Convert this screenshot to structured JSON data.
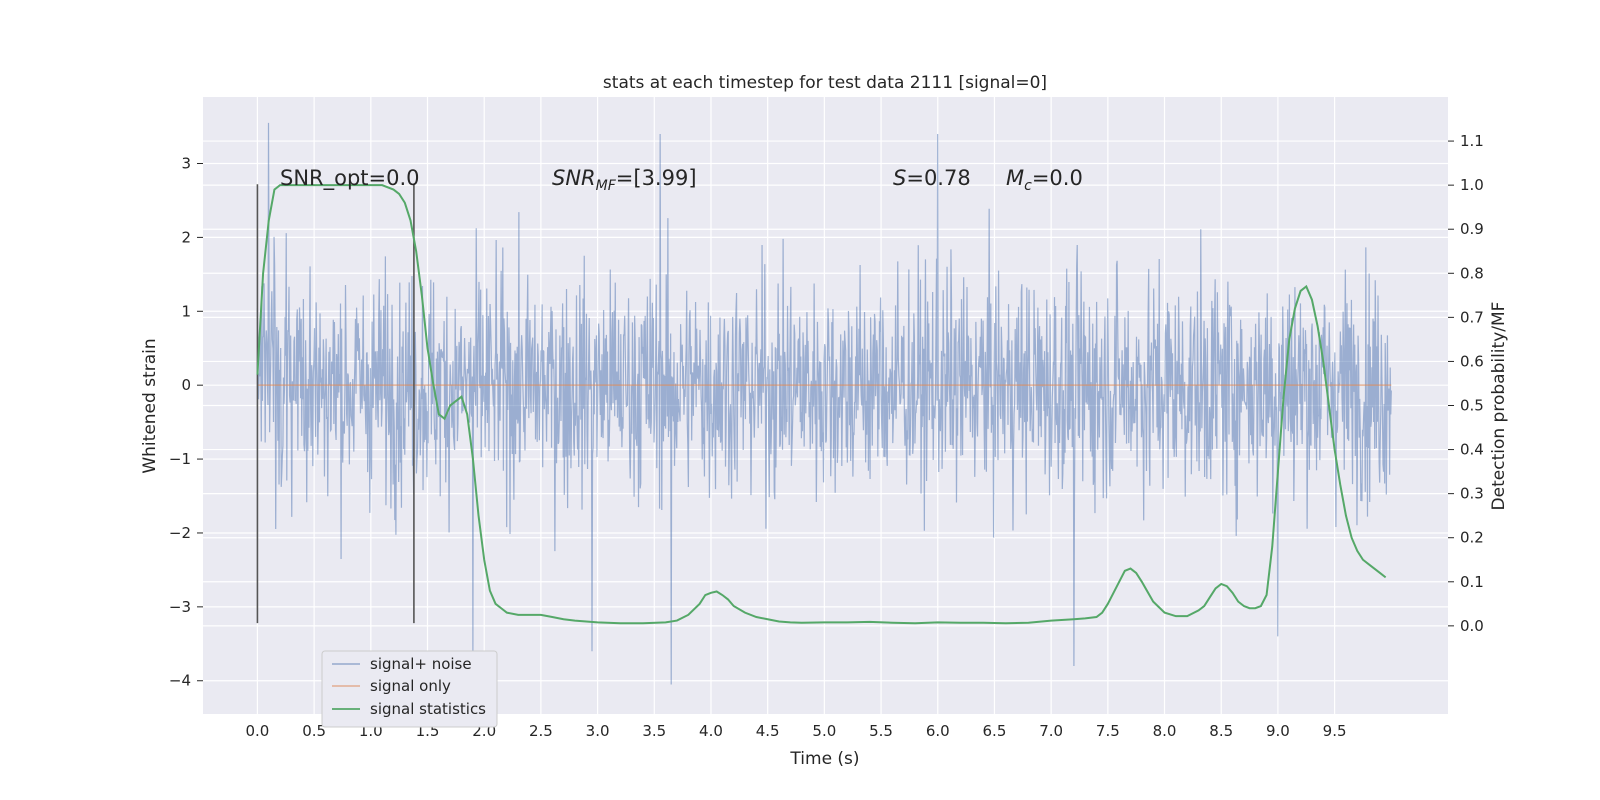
{
  "chart_data": {
    "type": "line",
    "title": "stats at each timestep for test data 2111 [signal=0]",
    "xlabel": "Time (s)",
    "ylabel": "Whitened strain",
    "ylabel_right": "Detection probability/MF",
    "xlim": [
      -0.48,
      10.5
    ],
    "ylim": [
      -4.45,
      3.9
    ],
    "ylim_right": [
      -0.2,
      1.2
    ],
    "x_ticks": [
      "0.0",
      "0.5",
      "1.0",
      "1.5",
      "2.0",
      "2.5",
      "3.0",
      "3.5",
      "4.0",
      "4.5",
      "5.0",
      "5.5",
      "6.0",
      "6.5",
      "7.0",
      "7.5",
      "8.0",
      "8.5",
      "9.0",
      "9.5"
    ],
    "y_ticks": [
      "3",
      "2",
      "1",
      "0",
      "−1",
      "−2",
      "−3",
      "−4"
    ],
    "y_ticks_right": [
      "1.1",
      "1.0",
      "0.9",
      "0.8",
      "0.7",
      "0.6",
      "0.5",
      "0.4",
      "0.3",
      "0.2",
      "0.1",
      "0.0"
    ],
    "grid": true,
    "legend_position": "lower-left",
    "annotations": {
      "snr_opt": "SNR_opt=0.0",
      "snr_mf_main": "SNR",
      "snr_mf_sub": "MF",
      "snr_mf_value": "=[3.99]",
      "s_var": "S",
      "s_value": "=0.78",
      "mc_var": "M",
      "mc_sub": "c",
      "mc_value": "=0.0"
    },
    "vertical_markers_x": [
      0.0,
      1.38
    ],
    "series": [
      {
        "name": "signal+ noise",
        "color": "#4c72b0",
        "axis": "left",
        "description_of_envelope": "noise band roughly between -2.2 and 2.2 with spikes",
        "x_range": [
          0.0,
          10.0
        ],
        "spike_extremes": [
          {
            "x": 0.1,
            "y": 3.55
          },
          {
            "x": 1.9,
            "y": -3.6
          },
          {
            "x": 3.65,
            "y": -4.05
          },
          {
            "x": 3.55,
            "y": 3.4
          },
          {
            "x": 7.2,
            "y": -3.8
          },
          {
            "x": 2.95,
            "y": -3.6
          },
          {
            "x": 6.0,
            "y": 3.4
          },
          {
            "x": 9.0,
            "y": -3.4
          }
        ]
      },
      {
        "name": "signal only",
        "color": "#dd8452",
        "axis": "left",
        "x": [
          0.0,
          10.0
        ],
        "values": [
          0.0,
          0.0
        ]
      },
      {
        "name": "signal statistics",
        "color": "#55a868",
        "axis": "right",
        "x": [
          0.0,
          0.05,
          0.1,
          0.15,
          0.2,
          0.3,
          0.5,
          0.7,
          0.9,
          1.1,
          1.2,
          1.25,
          1.3,
          1.35,
          1.4,
          1.45,
          1.5,
          1.55,
          1.6,
          1.65,
          1.7,
          1.75,
          1.8,
          1.85,
          1.9,
          1.95,
          2.0,
          2.05,
          2.1,
          2.15,
          2.2,
          2.3,
          2.4,
          2.5,
          2.6,
          2.7,
          2.8,
          2.9,
          3.0,
          3.2,
          3.4,
          3.6,
          3.7,
          3.8,
          3.9,
          3.95,
          4.0,
          4.05,
          4.1,
          4.15,
          4.2,
          4.3,
          4.4,
          4.5,
          4.6,
          4.7,
          4.8,
          5.0,
          5.2,
          5.4,
          5.6,
          5.8,
          6.0,
          6.2,
          6.4,
          6.6,
          6.8,
          7.0,
          7.2,
          7.3,
          7.4,
          7.45,
          7.5,
          7.55,
          7.6,
          7.65,
          7.7,
          7.75,
          7.8,
          7.9,
          8.0,
          8.1,
          8.2,
          8.3,
          8.35,
          8.4,
          8.45,
          8.5,
          8.55,
          8.6,
          8.65,
          8.7,
          8.75,
          8.8,
          8.85,
          8.9,
          8.95,
          9.0,
          9.05,
          9.1,
          9.15,
          9.2,
          9.25,
          9.3,
          9.35,
          9.4,
          9.45,
          9.5,
          9.55,
          9.6,
          9.65,
          9.7,
          9.75,
          9.8,
          9.85,
          9.9,
          9.95
        ],
        "values": [
          0.57,
          0.8,
          0.92,
          0.99,
          1.0,
          1.0,
          1.0,
          1.0,
          1.0,
          1.0,
          0.99,
          0.98,
          0.96,
          0.92,
          0.85,
          0.75,
          0.63,
          0.55,
          0.48,
          0.47,
          0.5,
          0.51,
          0.52,
          0.48,
          0.38,
          0.25,
          0.15,
          0.08,
          0.05,
          0.04,
          0.03,
          0.025,
          0.025,
          0.025,
          0.02,
          0.015,
          0.012,
          0.01,
          0.008,
          0.006,
          0.006,
          0.008,
          0.012,
          0.025,
          0.05,
          0.07,
          0.075,
          0.078,
          0.07,
          0.06,
          0.045,
          0.03,
          0.02,
          0.015,
          0.01,
          0.008,
          0.007,
          0.008,
          0.008,
          0.009,
          0.007,
          0.006,
          0.008,
          0.007,
          0.007,
          0.006,
          0.007,
          0.012,
          0.015,
          0.017,
          0.02,
          0.03,
          0.05,
          0.075,
          0.1,
          0.125,
          0.13,
          0.12,
          0.1,
          0.055,
          0.03,
          0.022,
          0.022,
          0.035,
          0.045,
          0.065,
          0.085,
          0.095,
          0.09,
          0.075,
          0.055,
          0.045,
          0.04,
          0.04,
          0.045,
          0.07,
          0.18,
          0.35,
          0.52,
          0.65,
          0.72,
          0.76,
          0.77,
          0.74,
          0.68,
          0.6,
          0.5,
          0.4,
          0.32,
          0.25,
          0.2,
          0.17,
          0.15,
          0.14,
          0.13,
          0.12,
          0.11
        ]
      }
    ]
  }
}
